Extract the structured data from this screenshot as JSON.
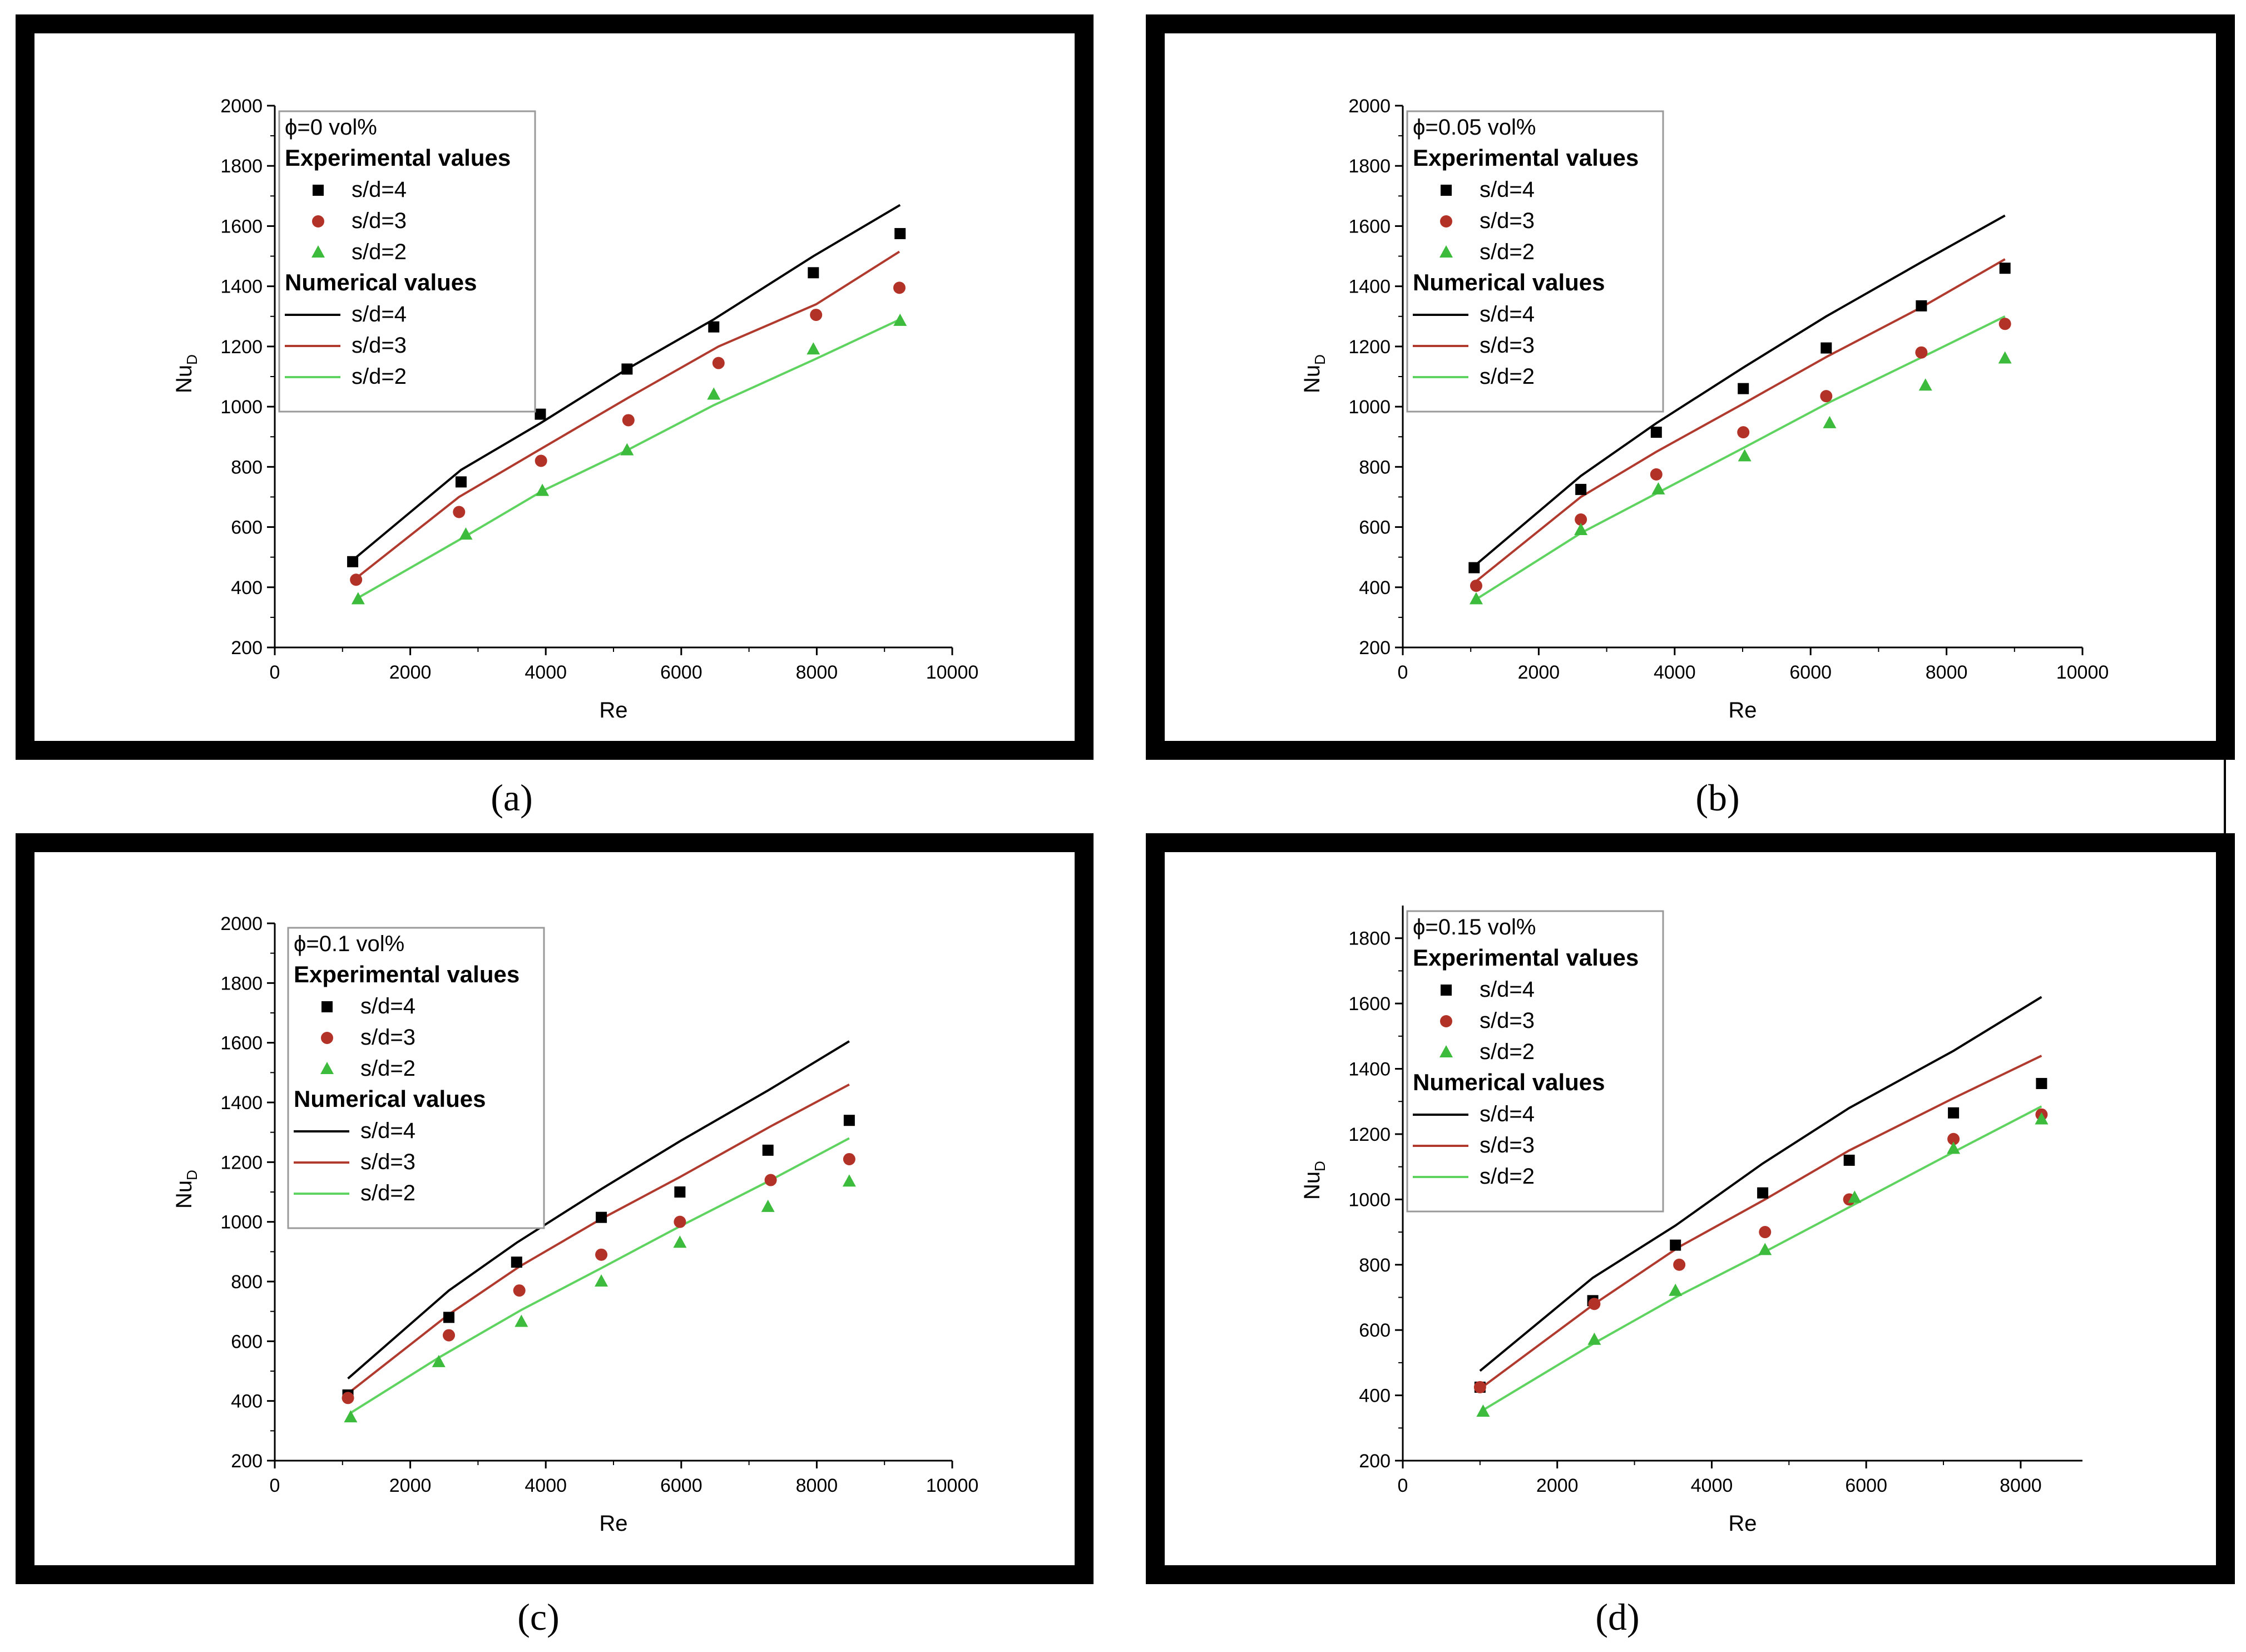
{
  "colors": {
    "s4": "#000000",
    "s3_line": "#b03a2e",
    "s3_marker": "#b33228",
    "s2_line": "#5fd35f",
    "s2_marker": "#3dbb3d"
  },
  "chart_data": [
    {
      "panel": "a",
      "caption": "(a)",
      "type": "scatter+line",
      "xlabel": "Re",
      "ylabel": "Nu",
      "ylabel_sub": "D",
      "xlim": [
        0,
        10000
      ],
      "ylim": [
        200,
        2000
      ],
      "xticks": [
        0,
        2000,
        4000,
        6000,
        8000,
        10000
      ],
      "yticks": [
        200,
        400,
        600,
        800,
        1000,
        1200,
        1400,
        1600,
        1800,
        2000
      ],
      "legend": {
        "title": "ϕ=0 vol%",
        "exp_header": "Experimental values",
        "num_header": "Numerical values",
        "entries": [
          "s/d=4",
          "s/d=3",
          "s/d=2"
        ]
      },
      "experimental": [
        {
          "name": "s/d=4",
          "marker": "square",
          "x": [
            1150,
            2750,
            3920,
            5200,
            6480,
            7950,
            9230
          ],
          "y": [
            485,
            750,
            975,
            1125,
            1265,
            1445,
            1575
          ]
        },
        {
          "name": "s/d=3",
          "marker": "circle",
          "x": [
            1200,
            2720,
            3930,
            5220,
            6550,
            7990,
            9220
          ],
          "y": [
            425,
            650,
            820,
            955,
            1145,
            1305,
            1395
          ]
        },
        {
          "name": "s/d=2",
          "marker": "triangle",
          "x": [
            1230,
            2820,
            3950,
            5200,
            6480,
            7950,
            9230
          ],
          "y": [
            360,
            575,
            720,
            855,
            1040,
            1190,
            1285
          ]
        }
      ],
      "numerical": [
        {
          "name": "s/d=4",
          "x": [
            1150,
            2750,
            3920,
            5200,
            6480,
            7950,
            9230
          ],
          "y": [
            490,
            790,
            945,
            1125,
            1290,
            1500,
            1670
          ]
        },
        {
          "name": "s/d=3",
          "x": [
            1200,
            2720,
            3930,
            5220,
            6550,
            7990,
            9220
          ],
          "y": [
            430,
            700,
            860,
            1030,
            1200,
            1340,
            1515
          ]
        },
        {
          "name": "s/d=2",
          "x": [
            1230,
            2820,
            3950,
            5200,
            6480,
            7950,
            9230
          ],
          "y": [
            365,
            570,
            720,
            855,
            1005,
            1155,
            1290
          ]
        }
      ]
    },
    {
      "panel": "b",
      "caption": "(b)",
      "type": "scatter+line",
      "xlabel": "Re",
      "ylabel": "Nu",
      "ylabel_sub": "D",
      "xlim": [
        0,
        10000
      ],
      "ylim": [
        200,
        2000
      ],
      "xticks": [
        0,
        2000,
        4000,
        6000,
        8000,
        10000
      ],
      "yticks": [
        200,
        400,
        600,
        800,
        1000,
        1200,
        1400,
        1600,
        1800,
        2000
      ],
      "legend": {
        "title": "ϕ=0.05 vol%",
        "exp_header": "Experimental values",
        "num_header": "Numerical values",
        "entries": [
          "s/d=4",
          "s/d=3",
          "s/d=2"
        ]
      },
      "experimental": [
        {
          "name": "s/d=4",
          "marker": "square",
          "x": [
            1050,
            2620,
            3730,
            5010,
            6230,
            7630,
            8860
          ],
          "y": [
            465,
            725,
            915,
            1060,
            1195,
            1335,
            1460
          ]
        },
        {
          "name": "s/d=3",
          "marker": "circle",
          "x": [
            1080,
            2620,
            3730,
            5010,
            6230,
            7630,
            8860
          ],
          "y": [
            405,
            625,
            775,
            915,
            1035,
            1180,
            1275
          ]
        },
        {
          "name": "s/d=2",
          "marker": "triangle",
          "x": [
            1080,
            2620,
            3760,
            5030,
            6280,
            7690,
            8860
          ],
          "y": [
            360,
            590,
            725,
            835,
            945,
            1070,
            1160
          ]
        }
      ],
      "numerical": [
        {
          "name": "s/d=4",
          "x": [
            1050,
            2620,
            3730,
            5010,
            6230,
            7630,
            8860
          ],
          "y": [
            470,
            770,
            945,
            1130,
            1300,
            1480,
            1635
          ]
        },
        {
          "name": "s/d=3",
          "x": [
            1080,
            2620,
            3730,
            5010,
            6230,
            7630,
            8860
          ],
          "y": [
            420,
            700,
            850,
            1010,
            1165,
            1330,
            1490
          ]
        },
        {
          "name": "s/d=2",
          "x": [
            1080,
            2620,
            3760,
            5030,
            6280,
            7690,
            8860
          ],
          "y": [
            360,
            580,
            715,
            865,
            1015,
            1170,
            1300
          ]
        }
      ]
    },
    {
      "panel": "c",
      "caption": "(c)",
      "type": "scatter+line",
      "xlabel": "Re",
      "ylabel": "Nu",
      "ylabel_sub": "D",
      "xlim": [
        0,
        10000
      ],
      "ylim": [
        200,
        2000
      ],
      "xticks": [
        0,
        2000,
        4000,
        6000,
        8000,
        10000
      ],
      "yticks": [
        200,
        400,
        600,
        800,
        1000,
        1200,
        1400,
        1600,
        1800,
        2000
      ],
      "legend": {
        "title": "ϕ=0.1 vol%",
        "exp_header": "Experimental values",
        "num_header": "Numerical values",
        "entries": [
          "s/d=4",
          "s/d=3",
          "s/d=2"
        ]
      },
      "experimental": [
        {
          "name": "s/d=4",
          "marker": "square",
          "x": [
            1080,
            2570,
            3570,
            4820,
            5980,
            7280,
            8480
          ],
          "y": [
            420,
            680,
            865,
            1015,
            1100,
            1240,
            1340
          ]
        },
        {
          "name": "s/d=3",
          "marker": "circle",
          "x": [
            1080,
            2570,
            3610,
            4820,
            5980,
            7320,
            8480
          ],
          "y": [
            410,
            620,
            770,
            890,
            1000,
            1140,
            1210
          ]
        },
        {
          "name": "s/d=2",
          "marker": "triangle",
          "x": [
            1120,
            2420,
            3640,
            4820,
            5980,
            7280,
            8480
          ],
          "y": [
            345,
            530,
            665,
            800,
            930,
            1050,
            1135
          ]
        }
      ],
      "numerical": [
        {
          "name": "s/d=4",
          "x": [
            1080,
            2570,
            3570,
            4820,
            5980,
            7280,
            8480
          ],
          "y": [
            475,
            770,
            930,
            1110,
            1270,
            1440,
            1605
          ]
        },
        {
          "name": "s/d=3",
          "x": [
            1080,
            2570,
            3610,
            4820,
            5980,
            7320,
            8480
          ],
          "y": [
            425,
            690,
            850,
            1010,
            1150,
            1320,
            1460
          ]
        },
        {
          "name": "s/d=2",
          "x": [
            1120,
            2420,
            3640,
            4820,
            5980,
            7280,
            8480
          ],
          "y": [
            360,
            545,
            705,
            845,
            985,
            1135,
            1280
          ]
        }
      ]
    },
    {
      "panel": "d",
      "caption": "(d)",
      "type": "scatter+line",
      "xlabel": "Re",
      "ylabel": "Nu",
      "ylabel_sub": "D",
      "xlim": [
        0,
        8800
      ],
      "ylim": [
        200,
        1900
      ],
      "xticks": [
        0,
        2000,
        4000,
        6000,
        8000
      ],
      "yticks": [
        200,
        400,
        600,
        800,
        1000,
        1200,
        1400,
        1600,
        1800
      ],
      "legend": {
        "title": "ϕ=0.15 vol%",
        "exp_header": "Experimental values",
        "num_header": "Numerical values",
        "entries": [
          "s/d=4",
          "s/d=3",
          "s/d=2"
        ]
      },
      "experimental": [
        {
          "name": "s/d=4",
          "marker": "square",
          "x": [
            1000,
            2460,
            3530,
            4660,
            5780,
            7130,
            8270
          ],
          "y": [
            425,
            690,
            860,
            1020,
            1120,
            1265,
            1355
          ]
        },
        {
          "name": "s/d=3",
          "marker": "circle",
          "x": [
            1000,
            2480,
            3580,
            4690,
            5780,
            7130,
            8270
          ],
          "y": [
            425,
            680,
            800,
            900,
            1000,
            1185,
            1260
          ]
        },
        {
          "name": "s/d=2",
          "marker": "triangle",
          "x": [
            1040,
            2480,
            3530,
            4690,
            5850,
            7130,
            8270
          ],
          "y": [
            350,
            570,
            720,
            845,
            1005,
            1155,
            1245
          ]
        }
      ],
      "numerical": [
        {
          "name": "s/d=4",
          "x": [
            1000,
            2460,
            3530,
            4660,
            5780,
            7130,
            8270
          ],
          "y": [
            475,
            760,
            920,
            1110,
            1280,
            1455,
            1620
          ]
        },
        {
          "name": "s/d=3",
          "x": [
            1000,
            2480,
            3580,
            4690,
            5780,
            7130,
            8270
          ],
          "y": [
            420,
            680,
            855,
            1000,
            1150,
            1310,
            1440
          ]
        },
        {
          "name": "s/d=2",
          "x": [
            1040,
            2480,
            3530,
            4690,
            5850,
            7130,
            8270
          ],
          "y": [
            355,
            560,
            700,
            840,
            985,
            1145,
            1285
          ]
        }
      ]
    }
  ]
}
